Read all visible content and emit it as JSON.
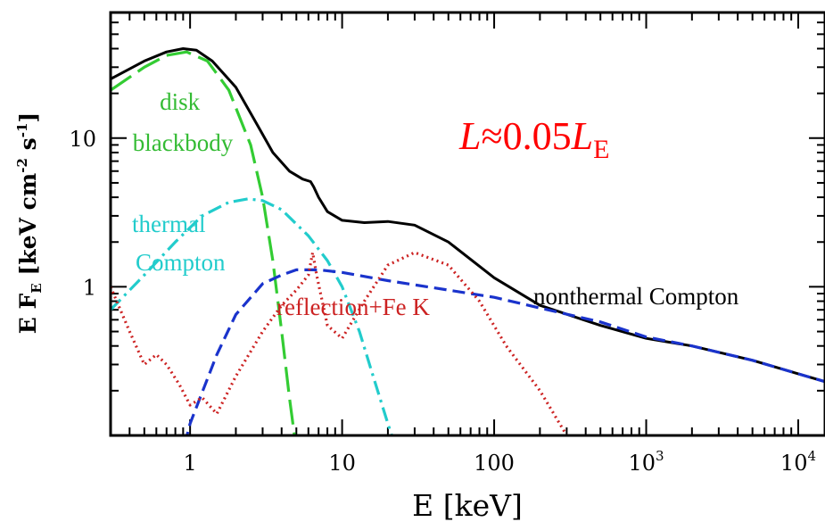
{
  "chart_data": {
    "type": "line",
    "x_scale": "log",
    "y_scale": "log",
    "xlim": [
      0.3,
      15000
    ],
    "ylim": [
      0.1,
      70
    ],
    "xlabel": "E [keV]",
    "ylabel": "E F",
    "ylabel_sub": "E",
    "ylabel_units": " [keV cm",
    "ylabel_exp1": "-2",
    "ylabel_mid": " s",
    "ylabel_exp2": "-1",
    "ylabel_end": "]",
    "x_ticks": [
      {
        "value": 1,
        "base": "1",
        "exp": ""
      },
      {
        "value": 10,
        "base": "10",
        "exp": ""
      },
      {
        "value": 100,
        "base": "100",
        "exp": ""
      },
      {
        "value": 1000,
        "base": "10",
        "exp": "3"
      },
      {
        "value": 10000,
        "base": "10",
        "exp": "4"
      }
    ],
    "y_ticks": [
      {
        "value": 1,
        "label": "1"
      },
      {
        "value": 10,
        "label": "10"
      }
    ],
    "annotation": {
      "prefix": "L",
      "approx": "≈0.05",
      "var": "L",
      "sub": "E",
      "color": "#ff0000"
    },
    "series": [
      {
        "name": "total",
        "color": "#000000",
        "dash": "solid",
        "points": [
          [
            0.3,
            25
          ],
          [
            0.5,
            33
          ],
          [
            0.7,
            38
          ],
          [
            0.9,
            40
          ],
          [
            1.1,
            39
          ],
          [
            1.4,
            33
          ],
          [
            2,
            22
          ],
          [
            2.8,
            12
          ],
          [
            3.5,
            8
          ],
          [
            4.5,
            6
          ],
          [
            5.5,
            5.3
          ],
          [
            6.2,
            5.1
          ],
          [
            6.5,
            4.7
          ],
          [
            7,
            4
          ],
          [
            8,
            3.2
          ],
          [
            10,
            2.8
          ],
          [
            14,
            2.7
          ],
          [
            20,
            2.75
          ],
          [
            30,
            2.6
          ],
          [
            50,
            2
          ],
          [
            100,
            1.15
          ],
          [
            200,
            0.75
          ],
          [
            500,
            0.55
          ],
          [
            1000,
            0.45
          ],
          [
            2000,
            0.4
          ],
          [
            5000,
            0.32
          ],
          [
            10000,
            0.26
          ],
          [
            15000,
            0.23
          ]
        ]
      },
      {
        "name": "disk blackbody",
        "color": "#33cc33",
        "dash": "long",
        "points": [
          [
            0.3,
            21
          ],
          [
            0.5,
            30
          ],
          [
            0.7,
            36
          ],
          [
            0.95,
            38
          ],
          [
            1.3,
            33
          ],
          [
            1.8,
            21
          ],
          [
            2.5,
            9
          ],
          [
            3,
            4
          ],
          [
            3.5,
            1.5
          ],
          [
            4,
            0.5
          ],
          [
            4.5,
            0.18
          ],
          [
            5,
            0.08
          ]
        ]
      },
      {
        "name": "thermal Compton",
        "color": "#22cccc",
        "dash": "dashdot",
        "points": [
          [
            0.3,
            0.7
          ],
          [
            0.5,
            1.2
          ],
          [
            0.8,
            2
          ],
          [
            1.2,
            3
          ],
          [
            1.8,
            3.7
          ],
          [
            2.4,
            3.9
          ],
          [
            3,
            3.8
          ],
          [
            4,
            3.3
          ],
          [
            6,
            2.2
          ],
          [
            8,
            1.5
          ],
          [
            10,
            1
          ],
          [
            13,
            0.5
          ],
          [
            16,
            0.25
          ],
          [
            20,
            0.12
          ],
          [
            25,
            0.06
          ]
        ]
      },
      {
        "name": "nonthermal Compton",
        "color": "#1a33cc",
        "dash": "dashed",
        "points": [
          [
            0.8,
            0.05
          ],
          [
            1,
            0.12
          ],
          [
            1.5,
            0.35
          ],
          [
            2,
            0.65
          ],
          [
            3,
            1.05
          ],
          [
            4,
            1.2
          ],
          [
            5,
            1.3
          ],
          [
            7,
            1.3
          ],
          [
            10,
            1.25
          ],
          [
            20,
            1.1
          ],
          [
            50,
            0.95
          ],
          [
            100,
            0.85
          ],
          [
            200,
            0.72
          ],
          [
            500,
            0.58
          ],
          [
            1000,
            0.46
          ],
          [
            2000,
            0.4
          ],
          [
            5000,
            0.32
          ],
          [
            10000,
            0.26
          ],
          [
            15000,
            0.23
          ]
        ]
      },
      {
        "name": "reflection+Fe K",
        "color": "#cc2222",
        "dash": "dotted",
        "points": [
          [
            0.3,
            1
          ],
          [
            0.4,
            0.5
          ],
          [
            0.5,
            0.3
          ],
          [
            0.6,
            0.35
          ],
          [
            0.7,
            0.3
          ],
          [
            0.85,
            0.22
          ],
          [
            1,
            0.16
          ],
          [
            1.2,
            0.18
          ],
          [
            1.5,
            0.14
          ],
          [
            2,
            0.25
          ],
          [
            3,
            0.5
          ],
          [
            4,
            0.75
          ],
          [
            5,
            0.95
          ],
          [
            6,
            1.2
          ],
          [
            6.4,
            1.7
          ],
          [
            6.8,
            1.2
          ],
          [
            8,
            0.55
          ],
          [
            10,
            0.45
          ],
          [
            14,
            0.8
          ],
          [
            20,
            1.4
          ],
          [
            30,
            1.7
          ],
          [
            50,
            1.4
          ],
          [
            80,
            0.8
          ],
          [
            120,
            0.4
          ],
          [
            200,
            0.2
          ],
          [
            300,
            0.1
          ],
          [
            400,
            0.06
          ]
        ]
      }
    ],
    "series_labels": [
      {
        "lines": [
          "disk",
          "blackbody"
        ],
        "color": "#33bb33"
      },
      {
        "lines": [
          "thermal",
          "Compton"
        ],
        "color": "#22cccc"
      },
      {
        "lines": [
          "reflection+Fe K"
        ],
        "color": "#cc2222"
      },
      {
        "lines": [
          "nonthermal Compton"
        ],
        "color": "#000000"
      }
    ]
  }
}
